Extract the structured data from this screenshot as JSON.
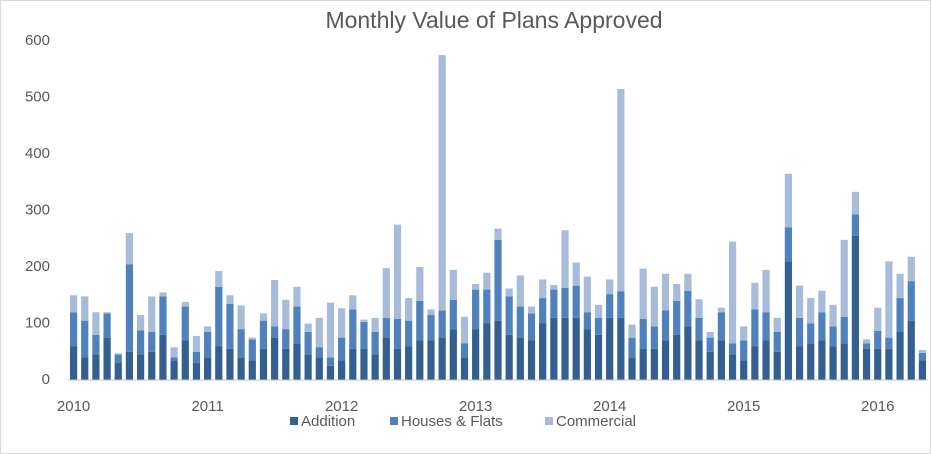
{
  "chart_data": {
    "type": "bar",
    "stacked": true,
    "title": "Monthly Value of Plans Approved",
    "categories": [
      "2010",
      null,
      null,
      null,
      null,
      null,
      null,
      null,
      null,
      null,
      null,
      null,
      "2011",
      null,
      null,
      null,
      null,
      null,
      null,
      null,
      null,
      null,
      null,
      null,
      "2012",
      null,
      null,
      null,
      null,
      null,
      null,
      null,
      null,
      null,
      null,
      null,
      "2013",
      null,
      null,
      null,
      null,
      null,
      null,
      null,
      null,
      null,
      null,
      null,
      "2014",
      null,
      null,
      null,
      null,
      null,
      null,
      null,
      null,
      null,
      null,
      null,
      "2015",
      null,
      null,
      null,
      null,
      null,
      null,
      null,
      null,
      null,
      null,
      null,
      "2016",
      null,
      null,
      null,
      null
    ],
    "series": [
      {
        "name": "Addition",
        "color": "#335f91",
        "values": [
          60,
          40,
          45,
          75,
          30,
          50,
          45,
          50,
          80,
          35,
          70,
          30,
          40,
          60,
          55,
          40,
          35,
          55,
          75,
          55,
          65,
          45,
          40,
          25,
          35,
          55,
          55,
          45,
          75,
          55,
          60,
          70,
          70,
          75,
          90,
          40,
          90,
          100,
          105,
          80,
          75,
          70,
          100,
          110,
          110,
          110,
          90,
          80,
          110,
          110,
          40,
          55,
          55,
          70,
          80,
          95,
          70,
          50,
          70,
          45,
          35,
          60,
          70,
          50,
          210,
          60,
          65,
          70,
          60,
          65,
          255,
          55,
          55,
          55,
          85,
          105,
          35
        ]
      },
      {
        "name": "Houses & Flats",
        "color": "#4f81bd",
        "values": [
          60,
          65,
          35,
          43,
          15,
          155,
          43,
          35,
          68,
          5,
          60,
          20,
          45,
          105,
          80,
          50,
          37,
          50,
          20,
          35,
          65,
          40,
          18,
          15,
          40,
          70,
          48,
          40,
          35,
          53,
          45,
          70,
          45,
          48,
          52,
          25,
          70,
          60,
          143,
          68,
          55,
          48,
          45,
          50,
          53,
          57,
          30,
          30,
          42,
          47,
          35,
          53,
          40,
          53,
          60,
          63,
          40,
          25,
          50,
          20,
          35,
          65,
          50,
          35,
          60,
          50,
          35,
          50,
          35,
          47,
          38,
          10,
          32,
          20,
          60,
          70,
          13
        ]
      },
      {
        "name": "Commercial",
        "color": "#a7bcd8",
        "values": [
          30,
          43,
          40,
          2,
          2,
          55,
          27,
          63,
          7,
          18,
          8,
          28,
          10,
          28,
          15,
          42,
          3,
          13,
          82,
          52,
          35,
          15,
          52,
          97,
          52,
          25,
          4,
          25,
          88,
          167,
          40,
          60,
          10,
          452,
          53,
          47,
          10,
          30,
          20,
          14,
          55,
          12,
          33,
          8,
          102,
          41,
          63,
          23,
          26,
          358,
          23,
          89,
          70,
          65,
          30,
          30,
          33,
          10,
          8,
          180,
          25,
          47,
          75,
          25,
          95,
          57,
          45,
          38,
          38,
          136,
          40,
          7,
          41,
          135,
          43,
          43,
          5
        ]
      }
    ],
    "ylim": [
      0,
      600
    ],
    "yticks": [
      0,
      100,
      200,
      300,
      400,
      500,
      600
    ],
    "grid": false,
    "legend": "bottom"
  }
}
